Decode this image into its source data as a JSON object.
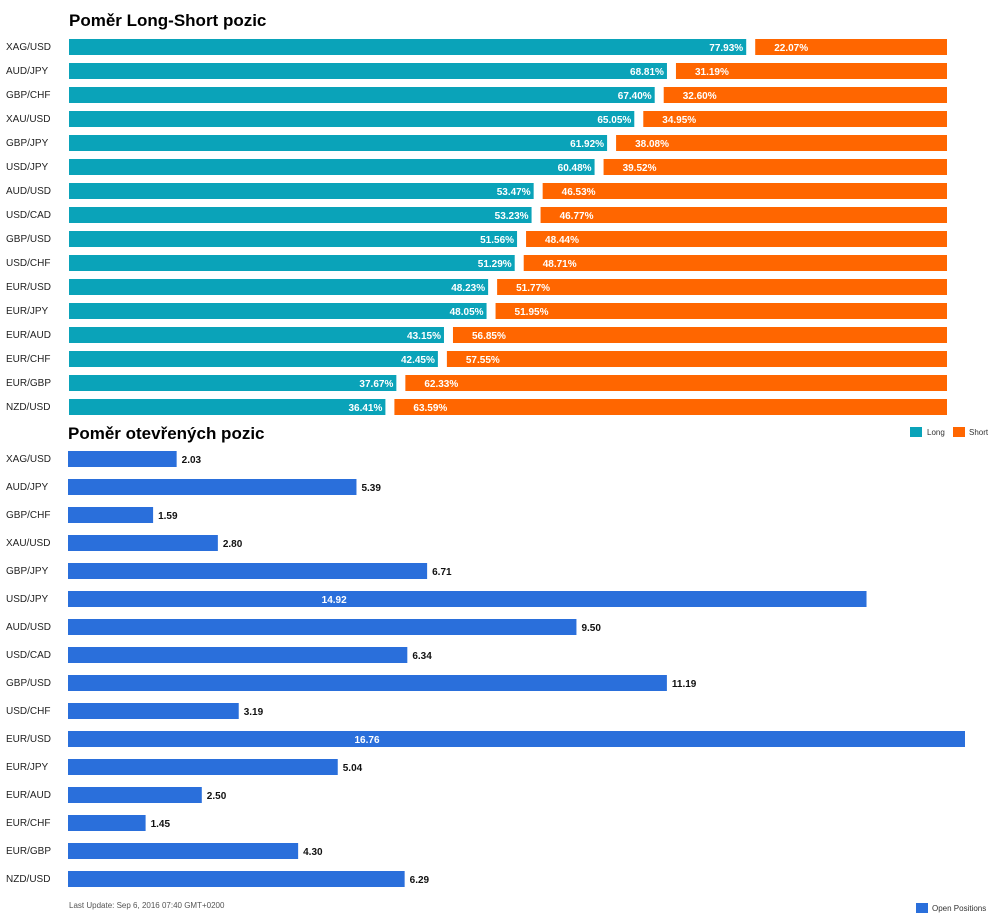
{
  "colors": {
    "long": "#0aa3b9",
    "short": "#ff6600",
    "open": "#2a6fdb"
  },
  "footer": "Last Update: Sep 6, 2016 07:40 GMT+0200",
  "chart_data": [
    {
      "type": "bar",
      "orientation": "horizontal",
      "stacked": true,
      "title": "Poměr Long-Short pozic",
      "categories": [
        "XAG/USD",
        "AUD/JPY",
        "GBP/CHF",
        "XAU/USD",
        "GBP/JPY",
        "USD/JPY",
        "AUD/USD",
        "USD/CAD",
        "GBP/USD",
        "USD/CHF",
        "EUR/USD",
        "EUR/JPY",
        "EUR/AUD",
        "EUR/CHF",
        "EUR/GBP",
        "NZD/USD"
      ],
      "series": [
        {
          "name": "Long",
          "values": [
            77.93,
            68.81,
            67.4,
            65.05,
            61.92,
            60.48,
            53.47,
            53.23,
            51.56,
            51.29,
            48.23,
            48.05,
            43.15,
            42.45,
            37.67,
            36.41
          ],
          "labels": [
            "77.93%",
            "68.81%",
            "67.40%",
            "65.05%",
            "61.92%",
            "60.48%",
            "53.47%",
            "53.23%",
            "51.56%",
            "51.29%",
            "48.23%",
            "48.05%",
            "43.15%",
            "42.45%",
            "37.67%",
            "36.41%"
          ]
        },
        {
          "name": "Short",
          "values": [
            22.07,
            31.19,
            32.6,
            34.95,
            38.08,
            39.52,
            46.53,
            46.77,
            48.44,
            48.71,
            51.77,
            51.95,
            56.85,
            57.55,
            62.33,
            63.59
          ],
          "labels": [
            "22.07%",
            "31.19%",
            "32.60%",
            "34.95%",
            "38.08%",
            "39.52%",
            "46.53%",
            "46.77%",
            "48.44%",
            "48.71%",
            "51.77%",
            "51.95%",
            "56.85%",
            "57.55%",
            "62.33%",
            "63.59%"
          ]
        }
      ],
      "legend_position": "bottom-right"
    },
    {
      "type": "bar",
      "orientation": "horizontal",
      "title": "Poměr otevřených pozic",
      "categories": [
        "XAG/USD",
        "AUD/JPY",
        "GBP/CHF",
        "XAU/USD",
        "GBP/JPY",
        "USD/JPY",
        "AUD/USD",
        "USD/CAD",
        "GBP/USD",
        "USD/CHF",
        "EUR/USD",
        "EUR/JPY",
        "EUR/AUD",
        "EUR/CHF",
        "EUR/GBP",
        "NZD/USD"
      ],
      "series": [
        {
          "name": "Open Positions",
          "values": [
            2.03,
            5.39,
            1.59,
            2.8,
            6.71,
            14.92,
            9.5,
            6.34,
            11.19,
            3.19,
            16.76,
            5.04,
            2.5,
            1.45,
            4.3,
            6.29
          ],
          "labels": [
            "2.03",
            "5.39",
            "1.59",
            "2.80",
            "6.71",
            "14.92",
            "9.50",
            "6.34",
            "11.19",
            "3.19",
            "16.76",
            "5.04",
            "2.50",
            "1.45",
            "4.30",
            "6.29"
          ]
        }
      ],
      "legend_position": "bottom-right"
    }
  ]
}
